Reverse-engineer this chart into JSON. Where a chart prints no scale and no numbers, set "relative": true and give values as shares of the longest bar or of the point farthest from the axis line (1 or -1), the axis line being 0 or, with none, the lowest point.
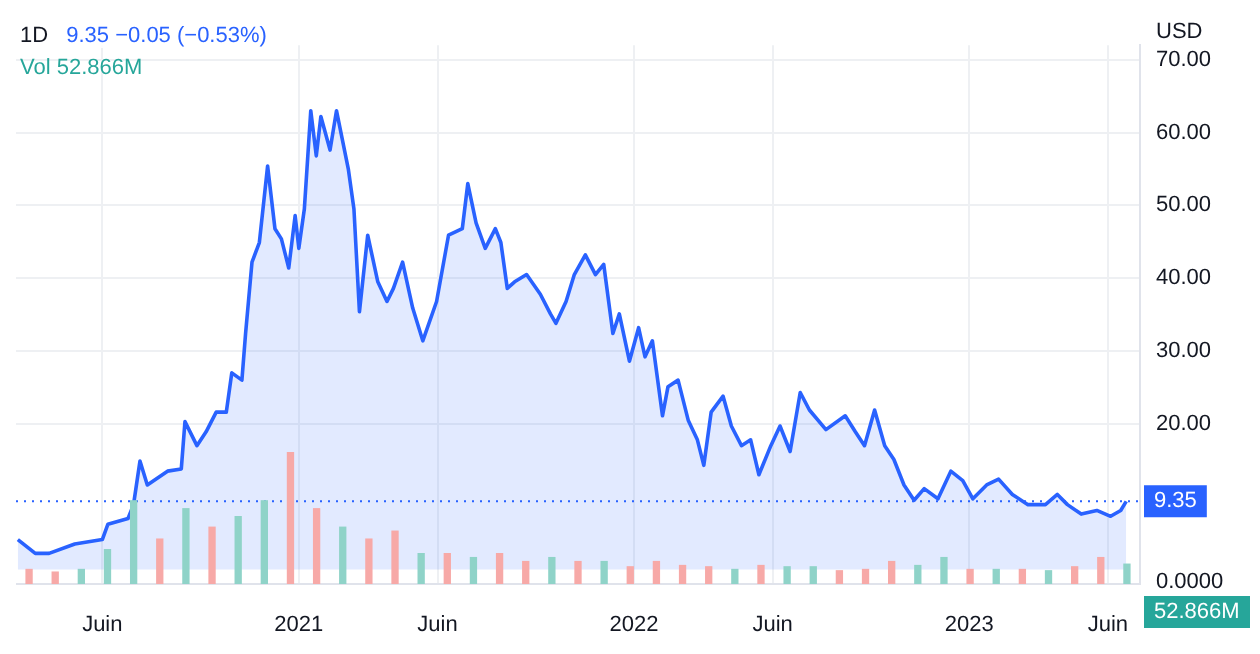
{
  "chart_data": [
    {
      "type": "area",
      "title": "1D",
      "ylabel": "USD",
      "annotations": [
        "9.35 −0.05 (−0.53%)",
        "Vol 52.866M"
      ],
      "xlim": [
        "2020-02-28",
        "2023-07-06"
      ],
      "xticks": [
        {
          "value": "2020-06-01",
          "label": "Juin"
        },
        {
          "value": "2021-01-01",
          "label": "2021"
        },
        {
          "value": "2021-06-01",
          "label": "Juin"
        },
        {
          "value": "2022-01-01",
          "label": "2022"
        },
        {
          "value": "2022-06-01",
          "label": "Juin"
        },
        {
          "value": "2023-01-01",
          "label": "2023"
        },
        {
          "value": "2023-06-01",
          "label": "Juin"
        }
      ],
      "ylim": [
        -2,
        72
      ],
      "yticks": [
        {
          "value": 20,
          "label": "20.00"
        },
        {
          "value": 30,
          "label": "30.00"
        },
        {
          "value": 40,
          "label": "40.00"
        },
        {
          "value": 50,
          "label": "50.00"
        },
        {
          "value": 60,
          "label": "60.00"
        },
        {
          "value": 70,
          "label": "70.00"
        }
      ],
      "grid": true,
      "marker": "none",
      "line_style": "solid",
      "ref_lines": [
        {
          "axis": "y",
          "value": 9.35,
          "label": "9.35",
          "color": "#2962ff",
          "line_style": "dotted"
        }
      ],
      "series": [
        {
          "color": "#2962ff",
          "x": [
            "2020-03-01",
            "2020-03-20",
            "2020-04-04",
            "2020-05-02",
            "2020-06-01",
            "2020-06-07",
            "2020-06-29",
            "2020-07-05",
            "2020-07-12",
            "2020-07-20",
            "2020-08-11",
            "2020-08-26",
            "2020-08-30",
            "2020-09-12",
            "2020-09-22",
            "2020-10-03",
            "2020-10-14",
            "2020-10-20",
            "2020-10-31",
            "2020-11-04",
            "2020-11-11",
            "2020-11-19",
            "2020-11-28",
            "2020-12-06",
            "2020-12-13",
            "2020-12-21",
            "2020-12-28",
            "2021-01-01",
            "2021-01-07",
            "2021-01-14",
            "2021-01-20",
            "2021-01-25",
            "2021-02-04",
            "2021-02-11",
            "2021-02-24",
            "2021-03-02",
            "2021-03-08",
            "2021-03-17",
            "2021-03-28",
            "2021-04-07",
            "2021-04-14",
            "2021-04-24",
            "2021-05-05",
            "2021-05-16",
            "2021-05-31",
            "2021-06-13",
            "2021-06-28",
            "2021-07-04",
            "2021-07-13",
            "2021-07-23",
            "2021-08-03",
            "2021-08-09",
            "2021-08-16",
            "2021-08-24",
            "2021-09-06",
            "2021-09-21",
            "2021-10-02",
            "2021-10-08",
            "2021-10-19",
            "2021-10-28",
            "2021-11-09",
            "2021-11-20",
            "2021-11-29",
            "2021-12-09",
            "2021-12-16",
            "2021-12-27",
            "2022-01-06",
            "2022-01-13",
            "2022-01-21",
            "2022-02-01",
            "2022-02-07",
            "2022-02-18",
            "2022-03-01",
            "2022-03-11",
            "2022-03-18",
            "2022-03-26",
            "2022-04-08",
            "2022-04-17",
            "2022-04-28",
            "2022-05-08",
            "2022-05-17",
            "2022-05-30",
            "2022-06-09",
            "2022-06-20",
            "2022-07-01",
            "2022-07-11",
            "2022-07-29",
            "2022-08-19",
            "2022-08-30",
            "2022-09-09",
            "2022-09-20",
            "2022-10-01",
            "2022-10-11",
            "2022-10-22",
            "2022-11-02",
            "2022-11-13",
            "2022-11-28",
            "2022-12-12",
            "2022-12-25",
            "2023-01-05",
            "2023-01-20",
            "2023-02-02",
            "2023-02-17",
            "2023-03-06",
            "2023-03-25",
            "2023-04-07",
            "2023-04-18",
            "2023-05-03",
            "2023-05-20",
            "2023-06-04",
            "2023-06-15",
            "2023-06-21"
          ],
          "values": [
            4.1,
            2.2,
            2.2,
            3.5,
            4.1,
            6.2,
            7.0,
            8.9,
            14.9,
            11.6,
            13.5,
            13.8,
            20.3,
            17.0,
            18.9,
            21.6,
            21.6,
            27,
            26,
            32.4,
            42.2,
            44.9,
            55.4,
            46.8,
            45.4,
            41.4,
            48.6,
            44.1,
            49.5,
            63,
            56.8,
            62.2,
            57.6,
            63,
            54.9,
            49.5,
            35.4,
            45.9,
            39.5,
            36.8,
            38.6,
            42.2,
            35.9,
            31.4,
            36.8,
            45.9,
            46.8,
            53,
            47.6,
            44.1,
            46.8,
            44.9,
            38.6,
            39.5,
            40.5,
            37.8,
            35.1,
            33.8,
            36.8,
            40.5,
            43.2,
            40.5,
            41.9,
            32.4,
            35.1,
            28.6,
            33.2,
            29.2,
            31.4,
            21.1,
            25.1,
            26,
            20.5,
            17.8,
            14.3,
            21.6,
            23.8,
            19.7,
            17.0,
            17.8,
            13.0,
            17.0,
            19.7,
            16.2,
            24.3,
            21.9,
            19.2,
            21.1,
            18.9,
            17.0,
            21.9,
            17.0,
            15.1,
            11.6,
            9.5,
            11.1,
            9.7,
            13.5,
            12.2,
            9.7,
            11.6,
            12.4,
            10.3,
            8.9,
            8.9,
            10.3,
            8.9,
            7.6,
            8.1,
            7.3,
            8.1,
            9.35
          ]
        }
      ]
    },
    {
      "type": "bar",
      "relative": true,
      "annotations": [
        "0.0000",
        "52.866M"
      ],
      "categories": [
        null,
        null,
        null,
        null,
        null,
        null,
        null,
        null,
        null,
        null,
        null,
        null,
        null,
        null,
        null,
        null,
        null,
        null,
        null,
        null,
        null,
        null,
        null,
        null,
        null,
        null,
        null,
        null,
        null,
        null,
        null,
        null,
        null,
        null,
        null,
        null,
        null,
        null,
        null,
        null,
        null,
        null,
        null
      ],
      "values": [
        0.11,
        0.09,
        0.11,
        0.26,
        0.63,
        0.34,
        0.57,
        0.43,
        0.51,
        0.63,
        1,
        0.57,
        0.43,
        0.34,
        0.4,
        0.23,
        0.23,
        0.2,
        0.23,
        0.17,
        0.2,
        0.17,
        0.17,
        0.13,
        0.17,
        0.14,
        0.13,
        0.11,
        0.14,
        0.13,
        0.13,
        0.1,
        0.11,
        0.17,
        0.14,
        0.2,
        0.11,
        0.11,
        0.11,
        0.1,
        0.13,
        0.2,
        0.15
      ],
      "colors": [
        "#f7a9a7",
        "#f7a9a7",
        "#8fd3c8",
        "#8fd3c8",
        "#8fd3c8",
        "#f7a9a7",
        "#8fd3c8",
        "#f7a9a7",
        "#8fd3c8",
        "#8fd3c8",
        "#f7a9a7",
        "#f7a9a7",
        "#8fd3c8",
        "#f7a9a7",
        "#f7a9a7",
        "#8fd3c8",
        "#f7a9a7",
        "#8fd3c8",
        "#f7a9a7",
        "#f7a9a7",
        "#8fd3c8",
        "#f7a9a7",
        "#8fd3c8",
        "#f7a9a7",
        "#f7a9a7",
        "#f7a9a7",
        "#f7a9a7",
        "#8fd3c8",
        "#f7a9a7",
        "#8fd3c8",
        "#8fd3c8",
        "#f7a9a7",
        "#f7a9a7",
        "#f7a9a7",
        "#8fd3c8",
        "#8fd3c8",
        "#f7a9a7",
        "#8fd3c8",
        "#f7a9a7",
        "#8fd3c8",
        "#f7a9a7",
        "#f7a9a7",
        "#8fd3c8"
      ]
    }
  ]
}
